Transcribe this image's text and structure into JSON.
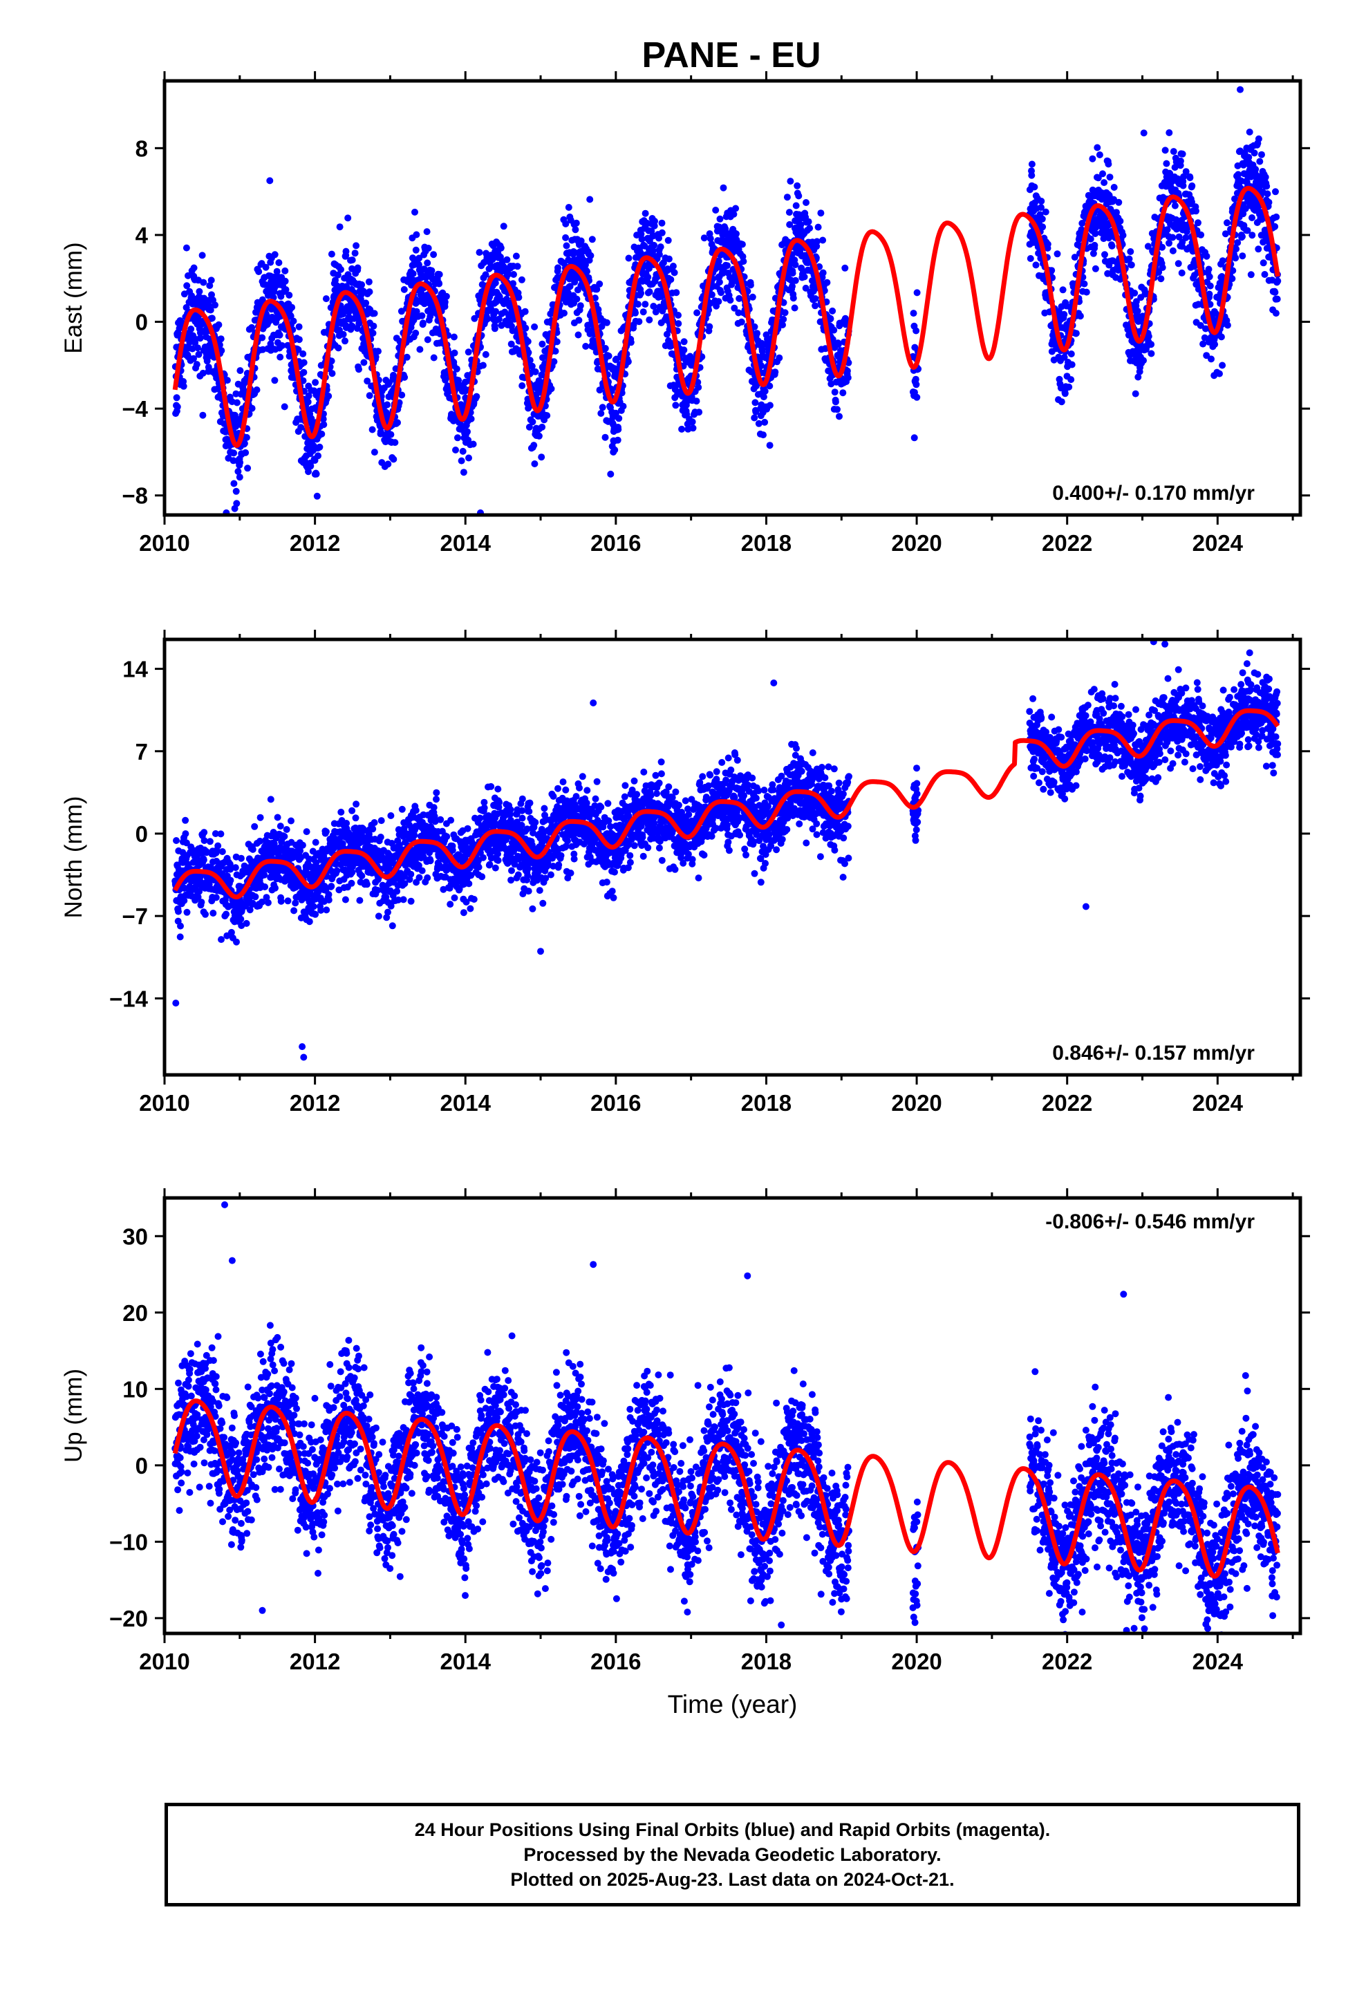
{
  "title": "PANE - EU",
  "colors": {
    "final_orbits": "#0000ff",
    "model": "#ff0000",
    "frame": "#000000"
  },
  "chart_data": [
    {
      "type": "scatter",
      "panel": "East",
      "ylabel": "East (mm)",
      "xlabel": "",
      "xlim": [
        2010,
        2025.1
      ],
      "ylim": [
        -8.9,
        11.1
      ],
      "xticks": [
        2010,
        2012,
        2014,
        2016,
        2018,
        2020,
        2022,
        2024
      ],
      "yticks": [
        -8,
        -4,
        0,
        4,
        8
      ],
      "rate_label": "0.400+/- 0.170 mm/yr",
      "series": [
        {
          "role": "final_orbits_daily_positions",
          "color": "#0000ff",
          "data_spans": [
            [
              2010.14,
              2019.1
            ],
            [
              2019.95,
              2020.02
            ],
            [
              2021.5,
              2024.8
            ]
          ],
          "trend_mm_per_yr": 0.4,
          "offset_mm": -2.3,
          "annual_amp_mm": 3.2,
          "semiannual_amp_mm": 0.6,
          "noise_sd_mm": 1.15,
          "outliers": [
            [
              2024.3,
              10.7
            ],
            [
              2023.02,
              8.7
            ],
            [
              2014.2,
              -8.8
            ],
            [
              2011.4,
              6.5
            ]
          ]
        },
        {
          "role": "model_fit",
          "color": "#ff0000",
          "x_range": [
            2010.14,
            2024.8
          ],
          "trend_mm_per_yr": 0.4,
          "offset_mm": -2.3,
          "annual_amp_mm": 3.2,
          "semiannual_amp_mm": 0.6
        }
      ]
    },
    {
      "type": "scatter",
      "panel": "North",
      "ylabel": "North (mm)",
      "xlabel": "",
      "xlim": [
        2010,
        2025.1
      ],
      "ylim": [
        -20.5,
        16.5
      ],
      "xticks": [
        2010,
        2012,
        2014,
        2016,
        2018,
        2020,
        2022,
        2024
      ],
      "yticks": [
        -14,
        -7,
        0,
        7,
        14
      ],
      "rate_label": "0.846+/- 0.157 mm/yr",
      "series": [
        {
          "role": "final_orbits_daily_positions",
          "color": "#0000ff",
          "data_spans": [
            [
              2010.14,
              2019.1
            ],
            [
              2019.95,
              2020.02
            ],
            [
              2021.5,
              2024.8
            ]
          ],
          "trend_mm_per_yr": 0.846,
          "offset_mm": -4.6,
          "annual_amp_mm": 1.3,
          "semiannual_amp_mm": 0.3,
          "noise_sd_mm": 1.55,
          "step_after_2021_mm": 1.8,
          "outliers": [
            [
              2023.15,
              16.3
            ],
            [
              2023.3,
              16.1
            ],
            [
              2011.83,
              -18.1
            ],
            [
              2011.85,
              -19.0
            ],
            [
              2010.15,
              -14.4
            ],
            [
              2018.1,
              12.8
            ],
            [
              2022.25,
              -6.2
            ],
            [
              2015.0,
              -10.0
            ],
            [
              2015.7,
              11.1
            ]
          ]
        },
        {
          "role": "model_fit",
          "color": "#ff0000",
          "x_range": [
            2010.14,
            2024.8
          ],
          "trend_mm_per_yr": 0.846,
          "offset_mm": -4.6,
          "annual_amp_mm": 1.3,
          "semiannual_amp_mm": 0.3,
          "step_after_2021_mm": 1.8
        }
      ]
    },
    {
      "type": "scatter",
      "panel": "Up",
      "ylabel": "Up (mm)",
      "xlabel": "Time (year)",
      "xlim": [
        2010,
        2025.1
      ],
      "ylim": [
        -22,
        35
      ],
      "xticks": [
        2010,
        2012,
        2014,
        2016,
        2018,
        2020,
        2022,
        2024
      ],
      "yticks": [
        -20,
        -10,
        0,
        10,
        20,
        30
      ],
      "rate_label": "-0.806+/- 0.546 mm/yr",
      "series": [
        {
          "role": "final_orbits_daily_positions",
          "color": "#0000ff",
          "data_spans": [
            [
              2010.14,
              2019.1
            ],
            [
              2019.95,
              2020.02
            ],
            [
              2021.5,
              2024.8
            ]
          ],
          "trend_mm_per_yr": -0.806,
          "offset_mm": 3.5,
          "annual_amp_mm": 6.0,
          "semiannual_amp_mm": 0.8,
          "noise_sd_mm": 4.3,
          "outliers": [
            [
              2010.8,
              34.1
            ],
            [
              2010.9,
              26.8
            ],
            [
              2015.7,
              26.3
            ],
            [
              2017.75,
              24.8
            ],
            [
              2022.75,
              22.4
            ],
            [
              2018.2,
              -20.9
            ],
            [
              2011.3,
              -19.0
            ],
            [
              2022.2,
              -19.2
            ]
          ]
        },
        {
          "role": "model_fit",
          "color": "#ff0000",
          "x_range": [
            2010.14,
            2024.8
          ],
          "trend_mm_per_yr": -0.806,
          "offset_mm": 3.5,
          "annual_amp_mm": 6.0,
          "semiannual_amp_mm": 0.8
        }
      ]
    }
  ],
  "footer": {
    "line1": "24 Hour Positions Using Final Orbits (blue) and Rapid Orbits (magenta).",
    "line2": "Processed by the Nevada Geodetic Laboratory.",
    "line3": "Plotted on 2025-Aug-23. Last data on 2024-Oct-21."
  }
}
